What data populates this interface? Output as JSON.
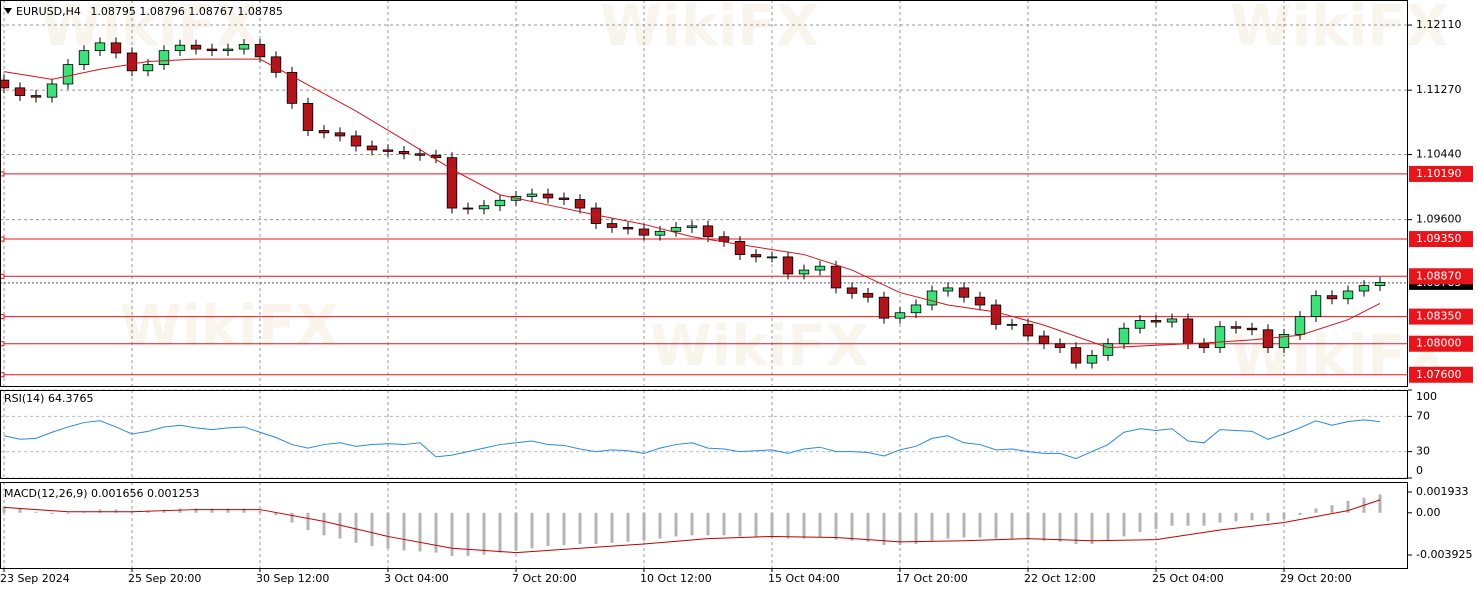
{
  "chart_data": [
    {
      "type": "candlestick",
      "symbol": "EURUSD,H4",
      "header_values": [
        1.08795,
        1.08796,
        1.08767,
        1.08785
      ],
      "watermark": "WikiFX",
      "xlim": [
        -0.25,
        87.75
      ],
      "xticks": [
        {
          "value": 0,
          "label": "23 Sep 2024"
        },
        {
          "value": 8,
          "label": "25 Sep 20:00"
        },
        {
          "value": 16,
          "label": "30 Sep 12:00"
        },
        {
          "value": 24,
          "label": "3 Oct 04:00"
        },
        {
          "value": 32,
          "label": "7 Oct 20:00"
        },
        {
          "value": 40,
          "label": "10 Oct 12:00"
        },
        {
          "value": 48,
          "label": "15 Oct 04:00"
        },
        {
          "value": 56,
          "label": "17 Oct 20:00"
        },
        {
          "value": 64,
          "label": "22 Oct 12:00"
        },
        {
          "value": 72,
          "label": "25 Oct 04:00"
        },
        {
          "value": 80,
          "label": "29 Oct 20:00"
        }
      ],
      "ylim": [
        1.07455,
        1.12433
      ],
      "yticks": [
        {
          "value": 1.1211,
          "label": "1.12110"
        },
        {
          "value": 1.1127,
          "label": "1.11270"
        },
        {
          "value": 1.1044,
          "label": "1.10440"
        },
        {
          "value": 1.096,
          "label": "1.09600"
        }
      ],
      "grid": true,
      "up_color": "#3ee07a",
      "down_color": "#b0151b",
      "open": [
        1.114,
        1.113,
        1.112,
        1.1118,
        1.1135,
        1.116,
        1.1178,
        1.1188,
        1.1175,
        1.1152,
        1.116,
        1.1178,
        1.1185,
        1.118,
        1.1178,
        1.118,
        1.1186,
        1.117,
        1.115,
        1.111,
        1.1075,
        1.1072,
        1.1068,
        1.1055,
        1.105,
        1.1048,
        1.1045,
        1.1043,
        1.104,
        1.0975,
        1.0974,
        1.0978,
        1.0985,
        1.099,
        1.0993,
        1.0988,
        1.0986,
        1.0975,
        1.0955,
        1.095,
        1.0948,
        1.094,
        1.0945,
        1.095,
        1.0952,
        1.0938,
        1.0932,
        1.0915,
        1.0912,
        1.0912,
        1.089,
        1.0895,
        1.09,
        1.0872,
        1.0865,
        1.086,
        1.0833,
        1.084,
        1.085,
        1.0868,
        1.0872,
        1.086,
        1.085,
        1.0825,
        1.0825,
        1.081,
        1.08,
        1.0795,
        1.0775,
        1.0785,
        1.08,
        1.082,
        1.083,
        1.0828,
        1.0832,
        1.08,
        1.0795,
        1.0822,
        1.082,
        1.0818,
        1.0795,
        1.0812,
        1.0835,
        1.0862,
        1.0858,
        1.0868,
        1.0875
      ],
      "high": [
        1.1147,
        1.1137,
        1.1127,
        1.1142,
        1.1167,
        1.1185,
        1.1195,
        1.1195,
        1.1182,
        1.1167,
        1.1185,
        1.1192,
        1.1192,
        1.1187,
        1.1187,
        1.1193,
        1.1193,
        1.1177,
        1.1157,
        1.1117,
        1.1082,
        1.1079,
        1.1075,
        1.1062,
        1.1057,
        1.1055,
        1.1052,
        1.105,
        1.1047,
        1.0982,
        1.0985,
        1.0992,
        1.0997,
        1.1,
        1.1,
        1.0995,
        1.0993,
        1.0982,
        1.0962,
        1.0957,
        1.0955,
        1.0952,
        1.0957,
        1.0959,
        1.0959,
        1.0945,
        1.0939,
        1.0922,
        1.0919,
        1.0919,
        1.0902,
        1.0907,
        1.0907,
        1.0879,
        1.0872,
        1.0867,
        1.0847,
        1.0857,
        1.0875,
        1.0879,
        1.0879,
        1.0867,
        1.0857,
        1.0832,
        1.0832,
        1.0817,
        1.0807,
        1.0802,
        1.0792,
        1.0807,
        1.0827,
        1.0837,
        1.0837,
        1.0839,
        1.0839,
        1.0807,
        1.0829,
        1.0829,
        1.0827,
        1.0825,
        1.0819,
        1.0842,
        1.0869,
        1.0869,
        1.0875,
        1.0882,
        1.0886
      ],
      "low": [
        1.1123,
        1.1113,
        1.1111,
        1.1111,
        1.1128,
        1.1153,
        1.1171,
        1.1168,
        1.1145,
        1.1145,
        1.1153,
        1.1171,
        1.1173,
        1.1171,
        1.1171,
        1.1173,
        1.1163,
        1.1143,
        1.1103,
        1.1068,
        1.1065,
        1.1061,
        1.1048,
        1.1043,
        1.1041,
        1.1038,
        1.1036,
        1.1033,
        1.0968,
        1.0967,
        1.0967,
        1.0971,
        1.0978,
        1.0983,
        1.0981,
        1.0979,
        1.0968,
        1.0948,
        1.0943,
        1.0941,
        1.0933,
        1.0933,
        1.0938,
        1.0943,
        1.0931,
        1.0925,
        1.0908,
        1.0905,
        1.0905,
        1.0883,
        1.0883,
        1.0888,
        1.0865,
        1.0858,
        1.0853,
        1.0826,
        1.0826,
        1.0833,
        1.0843,
        1.0861,
        1.0853,
        1.0843,
        1.0818,
        1.0818,
        1.0803,
        1.0793,
        1.0788,
        1.0768,
        1.0768,
        1.0778,
        1.0793,
        1.0813,
        1.0821,
        1.0821,
        1.0793,
        1.0788,
        1.0788,
        1.0813,
        1.0811,
        1.0788,
        1.0788,
        1.0805,
        1.0828,
        1.0851,
        1.0851,
        1.0861,
        1.0868
      ],
      "close": [
        1.113,
        1.112,
        1.1118,
        1.1135,
        1.116,
        1.1178,
        1.1188,
        1.1175,
        1.1152,
        1.116,
        1.1178,
        1.1185,
        1.118,
        1.1178,
        1.118,
        1.1186,
        1.117,
        1.115,
        1.111,
        1.1075,
        1.1072,
        1.1068,
        1.1055,
        1.105,
        1.1048,
        1.1045,
        1.1043,
        1.104,
        1.0975,
        1.0974,
        1.0978,
        1.0985,
        1.099,
        1.0993,
        1.0988,
        1.0986,
        1.0975,
        1.0955,
        1.095,
        1.0948,
        1.094,
        1.0945,
        1.095,
        1.0952,
        1.0938,
        1.0932,
        1.0915,
        1.0912,
        1.0912,
        1.089,
        1.0895,
        1.09,
        1.0872,
        1.0865,
        1.086,
        1.0833,
        1.084,
        1.085,
        1.0868,
        1.0872,
        1.086,
        1.085,
        1.0825,
        1.0825,
        1.081,
        1.08,
        1.0795,
        1.0775,
        1.0785,
        1.08,
        1.082,
        1.083,
        1.0828,
        1.0832,
        1.08,
        1.0795,
        1.0822,
        1.082,
        1.0818,
        1.0795,
        1.0812,
        1.0835,
        1.0862,
        1.0858,
        1.0868,
        1.0875,
        1.0879
      ],
      "ma": {
        "color": "#d0141c",
        "x": [
          0,
          3,
          6,
          9,
          12,
          16,
          18,
          22,
          25,
          28,
          31,
          34,
          37,
          40,
          43,
          46,
          50,
          53,
          56,
          59,
          62,
          65,
          69,
          72,
          75,
          78,
          81,
          84,
          86
        ],
        "values": [
          1.1151,
          1.1141,
          1.1154,
          1.1164,
          1.1167,
          1.1167,
          1.1145,
          1.11,
          1.1063,
          1.1025,
          1.0992,
          1.0979,
          1.0966,
          1.0954,
          1.0938,
          1.0928,
          1.0915,
          1.0895,
          1.0866,
          1.085,
          1.0841,
          1.0824,
          1.0795,
          1.0798,
          1.0801,
          1.0805,
          1.0811,
          1.0831,
          1.0852
        ]
      },
      "levels": {
        "color": "#e8141c",
        "values": [
          {
            "value": 1.1019,
            "label": "1.10190"
          },
          {
            "value": 1.0935,
            "label": "1.09350"
          },
          {
            "value": 1.0887,
            "label": "1.08870"
          },
          {
            "value": 1.0835,
            "label": "1.08350"
          },
          {
            "value": 1.08,
            "label": "1.08000"
          },
          {
            "value": 1.076,
            "label": "1.07600"
          }
        ]
      }
    },
    {
      "type": "line",
      "title": "RSI(14)",
      "title_value": 64.3765,
      "color": "#2a8ad8",
      "ylim": [
        0,
        100
      ],
      "yticks": [
        100,
        70,
        30,
        0
      ],
      "values": [
        48,
        44,
        45,
        52,
        58,
        63,
        65,
        58,
        50,
        53,
        58,
        60,
        57,
        55,
        57,
        58,
        52,
        46,
        38,
        34,
        38,
        40,
        36,
        38,
        39,
        38,
        40,
        24,
        26,
        30,
        34,
        38,
        40,
        42,
        38,
        37,
        33,
        30,
        32,
        31,
        28,
        34,
        38,
        40,
        34,
        33,
        30,
        31,
        32,
        28,
        33,
        35,
        30,
        30,
        29,
        25,
        32,
        36,
        45,
        48,
        40,
        38,
        32,
        33,
        30,
        28,
        28,
        22,
        30,
        38,
        52,
        56,
        54,
        56,
        42,
        40,
        55,
        54,
        53,
        44,
        50,
        57,
        65,
        60,
        64,
        66,
        64
      ]
    },
    {
      "type": "bar",
      "title": "MACD(12,26,9)",
      "title_values": [
        0.001656,
        0.001253
      ],
      "color": "#b4b4b4",
      "ylim": [
        -0.005134,
        0.002863
      ],
      "yticks": [
        0.001933,
        {
          "value": 0,
          "label": "0.00"
        },
        -0.003925
      ],
      "values": [
        0.0006,
        0.0004,
        0.0001,
        -0.0001,
        -0.0001,
        0.0001,
        0.0003,
        0.0003,
        0.0002,
        0.0002,
        0.0003,
        0.0004,
        0.0004,
        0.0004,
        0.0004,
        0.0004,
        0.0002,
        -0.0002,
        -0.0009,
        -0.0016,
        -0.0021,
        -0.0024,
        -0.0028,
        -0.0031,
        -0.0033,
        -0.0035,
        -0.0036,
        -0.0037,
        -0.004,
        -0.004,
        -0.0039,
        -0.0037,
        -0.0035,
        -0.0033,
        -0.0031,
        -0.003,
        -0.0029,
        -0.0029,
        -0.0028,
        -0.0027,
        -0.0026,
        -0.0024,
        -0.0022,
        -0.0021,
        -0.0021,
        -0.0021,
        -0.0022,
        -0.0023,
        -0.0023,
        -0.0024,
        -0.0024,
        -0.0023,
        -0.0025,
        -0.0026,
        -0.0027,
        -0.003,
        -0.003,
        -0.0029,
        -0.0026,
        -0.0024,
        -0.0023,
        -0.0023,
        -0.0024,
        -0.0024,
        -0.0025,
        -0.0026,
        -0.0027,
        -0.0029,
        -0.0029,
        -0.0026,
        -0.0022,
        -0.0018,
        -0.0015,
        -0.0012,
        -0.0012,
        -0.0012,
        -0.0009,
        -0.0008,
        -0.0007,
        -0.0008,
        -0.0006,
        -0.0002,
        0.0004,
        0.0007,
        0.0011,
        0.0014,
        0.0017
      ],
      "signal": {
        "color": "#c00000",
        "x": [
          0,
          4,
          8,
          12,
          16,
          20,
          24,
          28,
          32,
          36,
          40,
          44,
          48,
          52,
          56,
          60,
          64,
          68,
          72,
          76,
          80,
          84,
          86
        ],
        "values": [
          0.0005,
          0.0001,
          0.0001,
          0.0003,
          0.0003,
          -0.0008,
          -0.0022,
          -0.0033,
          -0.0037,
          -0.0033,
          -0.0029,
          -0.0024,
          -0.0022,
          -0.0023,
          -0.0027,
          -0.0026,
          -0.0024,
          -0.0026,
          -0.0025,
          -0.0016,
          -0.0009,
          0.0002,
          0.0012
        ]
      }
    }
  ]
}
